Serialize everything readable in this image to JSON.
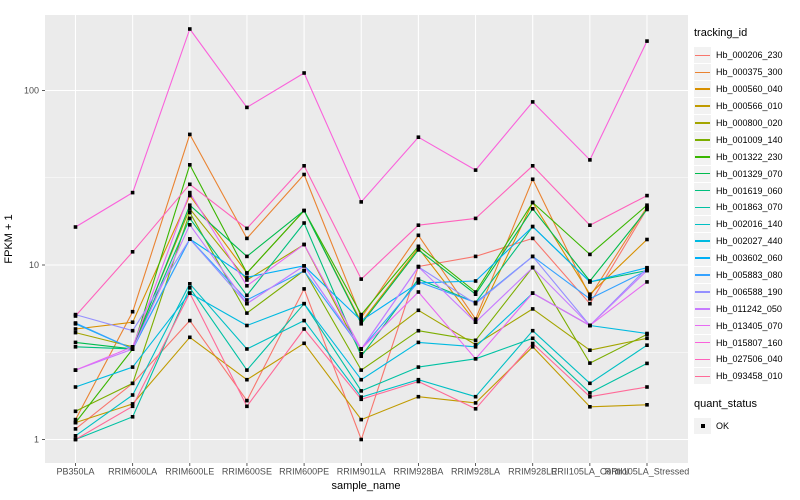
{
  "figure": {
    "panel_bg": "#ebebeb",
    "grid_color": "#ffffff",
    "tick_color": "#333333",
    "tick_label_color": "#4d4d4d",
    "point_color": "#000000"
  },
  "axes": {
    "x_title": "sample_name",
    "y_title": "FPKM + 1",
    "y_tick_labels": [
      "1",
      "10",
      "100"
    ]
  },
  "legend": {
    "tracking_title": "tracking_id",
    "quant_title": "quant_status",
    "quant_items": [
      {
        "label": "OK",
        "marker": "black-square"
      }
    ]
  },
  "chart_data": {
    "type": "line",
    "title": "",
    "xlabel": "sample_name",
    "ylabel": "FPKM + 1",
    "y_scale": "log10",
    "ylim": [
      0.75,
      270
    ],
    "y_major_ticks": [
      1,
      10,
      100
    ],
    "y_minor_gridlines": [
      3.162,
      31.62
    ],
    "grid": true,
    "legend_position": "right",
    "point_marker": "black-square",
    "categories": [
      "PB350LA",
      "RRIM600LA",
      "RRIM600LE",
      "RRIM600SE",
      "RRIM600PE",
      "RRIM901LA",
      "RRIM928BA",
      "RRIM928LA",
      "RRIM928LE",
      "RRII105LA_Control",
      "RRII105LA_Stressed"
    ],
    "series": [
      {
        "name": "Hb_000206_230",
        "color": "#F8766D",
        "values": [
          1.15,
          2.1,
          4.8,
          1.67,
          7.3,
          1.0,
          9.8,
          11.2,
          14.2,
          6.0,
          21
        ]
      },
      {
        "name": "Hb_000375_300",
        "color": "#EA8331",
        "values": [
          1.3,
          5.4,
          56,
          14.2,
          33,
          5.0,
          14.8,
          4.9,
          31,
          6.6,
          21.5
        ]
      },
      {
        "name": "Hb_000560_040",
        "color": "#D89000",
        "values": [
          4.3,
          4.7,
          25,
          9.0,
          20.5,
          4.7,
          12.5,
          4.7,
          22.8,
          6.8,
          14
        ]
      },
      {
        "name": "Hb_000566_010",
        "color": "#C09B00",
        "values": [
          1.25,
          1.6,
          3.85,
          2.2,
          3.56,
          1.3,
          1.76,
          1.62,
          3.4,
          1.54,
          1.58
        ]
      },
      {
        "name": "Hb_000800_020",
        "color": "#A3A500",
        "values": [
          4.1,
          3.4,
          21,
          8.2,
          13.1,
          3.1,
          5.5,
          3.5,
          5.6,
          3.25,
          3.8
        ]
      },
      {
        "name": "Hb_001009_140",
        "color": "#7CAE00",
        "values": [
          1.45,
          2.1,
          20,
          5.3,
          9.3,
          2.5,
          4.2,
          3.7,
          9.7,
          2.74,
          4.0
        ]
      },
      {
        "name": "Hb_001322_230",
        "color": "#39B600",
        "values": [
          1.25,
          3.3,
          37.5,
          9.0,
          20.5,
          5.2,
          12.8,
          7.0,
          22.8,
          11.5,
          22
        ]
      },
      {
        "name": "Hb_001329_070",
        "color": "#00BB4E",
        "values": [
          3.6,
          3.3,
          22,
          11.2,
          20.5,
          4.6,
          12.2,
          6.8,
          21,
          8.1,
          20.8
        ]
      },
      {
        "name": "Hb_001619_060",
        "color": "#00BF7D",
        "values": [
          3.4,
          3.3,
          18.5,
          6.7,
          17.4,
          3.0,
          8.3,
          6.1,
          16.6,
          8.0,
          9.3
        ]
      },
      {
        "name": "Hb_001863_070",
        "color": "#00C1A3",
        "values": [
          1.0,
          1.35,
          7.4,
          2.5,
          6.0,
          1.9,
          2.6,
          2.9,
          3.8,
          1.85,
          2.73
        ]
      },
      {
        "name": "Hb_002016_140",
        "color": "#00BFC4",
        "values": [
          1.05,
          1.8,
          7.8,
          3.3,
          4.8,
          1.75,
          2.2,
          1.76,
          4.2,
          2.1,
          3.47
        ]
      },
      {
        "name": "Hb_002027_440",
        "color": "#00BAE0",
        "values": [
          2.0,
          2.6,
          6.9,
          4.5,
          6.0,
          2.2,
          3.6,
          3.4,
          6.9,
          4.5,
          4.05
        ]
      },
      {
        "name": "Hb_003602_060",
        "color": "#00B0F6",
        "values": [
          4.6,
          3.3,
          14.1,
          8.5,
          9.9,
          4.8,
          7.9,
          8.1,
          16.6,
          8.0,
          9.65
        ]
      },
      {
        "name": "Hb_005883_080",
        "color": "#35A2FF",
        "values": [
          4.65,
          3.3,
          14.1,
          6.3,
          9.25,
          3.3,
          8.0,
          6.1,
          11.2,
          6.4,
          9.3
        ]
      },
      {
        "name": "Hb_006588_190",
        "color": "#9590FF",
        "values": [
          5.2,
          4.2,
          14.1,
          6.0,
          9.9,
          3.3,
          9.75,
          6.0,
          11.2,
          4.5,
          9.6
        ]
      },
      {
        "name": "Hb_011242_050",
        "color": "#C77CFF",
        "values": [
          2.5,
          3.3,
          17,
          6.0,
          9.9,
          3.3,
          9.75,
          4.7,
          9.65,
          4.5,
          9.3
        ]
      },
      {
        "name": "Hb_013405_070",
        "color": "#E76BF3",
        "values": [
          2.5,
          3.4,
          26,
          7.6,
          13.1,
          3.3,
          7.0,
          2.9,
          6.9,
          4.5,
          8.0
        ]
      },
      {
        "name": "Hb_015807_160",
        "color": "#FA62DB",
        "values": [
          16.5,
          26,
          225,
          80,
          126,
          23,
          54,
          35,
          86,
          40,
          192
        ]
      },
      {
        "name": "Hb_027506_040",
        "color": "#FF62BC",
        "values": [
          5.1,
          11.9,
          29,
          16.2,
          37,
          8.3,
          16.9,
          18.5,
          37,
          16.9,
          25
        ]
      },
      {
        "name": "Hb_093458_010",
        "color": "#FF6A98",
        "values": [
          1.0,
          1.55,
          6.9,
          1.55,
          4.3,
          1.7,
          2.15,
          1.5,
          3.55,
          1.76,
          2.0
        ]
      }
    ]
  }
}
